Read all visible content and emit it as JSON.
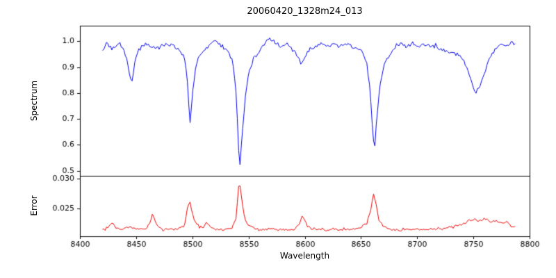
{
  "figure": {
    "background": "#ffffff",
    "axis_color": "#000000"
  },
  "chart_data": {
    "type": "line",
    "title": "20060420_1328m24_013",
    "xlabel": "Wavelength",
    "x_range": [
      8400,
      8800
    ],
    "x_ticks": [
      8400,
      8450,
      8500,
      8550,
      8600,
      8650,
      8700,
      8750,
      8800
    ],
    "x_tick_labels": [
      "8400",
      "8450",
      "8500",
      "8550",
      "8600",
      "8650",
      "8700",
      "8750",
      "8800"
    ],
    "grid": false,
    "legend": "none",
    "subplots": [
      {
        "name": "spectrum",
        "ylabel": "Spectrum",
        "ylim": [
          0.48,
          1.06
        ],
        "y_ticks": [
          0.5,
          0.6,
          0.7,
          0.8,
          0.9,
          1.0
        ],
        "y_tick_labels": [
          "0.5",
          "0.6",
          "0.7",
          "0.8",
          "0.9",
          "1.0"
        ],
        "color": "#0000ee",
        "line_width": 1,
        "noise_amplitude": 0.014,
        "noise_scale_by_depth": true,
        "seed": 42,
        "absorption_line_centers": [
          8446,
          8498,
          8542,
          8598,
          8662,
          8750
        ],
        "points": {
          "x": [
            8420,
            8424,
            8428,
            8432,
            8436,
            8440,
            8444,
            8446,
            8449,
            8453,
            8458,
            8464,
            8470,
            8476,
            8482,
            8488,
            8492,
            8495,
            8497,
            8498,
            8500,
            8503,
            8507,
            8512,
            8517,
            8522,
            8527,
            8532,
            8536,
            8539,
            8541,
            8542,
            8544,
            8547,
            8550,
            8554,
            8559,
            8564,
            8569,
            8574,
            8579,
            8584,
            8589,
            8594,
            8597,
            8599,
            8602,
            8606,
            8611,
            8616,
            8621,
            8626,
            8631,
            8636,
            8641,
            8646,
            8651,
            8655,
            8658,
            8660,
            8662,
            8664,
            8667,
            8671,
            8676,
            8681,
            8686,
            8691,
            8696,
            8701,
            8706,
            8711,
            8716,
            8721,
            8726,
            8731,
            8736,
            8741,
            8745,
            8749,
            8752,
            8756,
            8760,
            8764,
            8768,
            8772,
            8776,
            8780,
            8784,
            8788
          ],
          "y": [
            0.97,
            0.99,
            0.97,
            0.98,
            0.99,
            0.96,
            0.88,
            0.83,
            0.93,
            0.97,
            0.99,
            0.98,
            0.97,
            0.99,
            0.98,
            0.97,
            0.95,
            0.88,
            0.74,
            0.69,
            0.79,
            0.9,
            0.95,
            0.97,
            0.99,
            1.0,
            0.98,
            0.96,
            0.92,
            0.8,
            0.6,
            0.5,
            0.62,
            0.78,
            0.87,
            0.93,
            0.96,
            0.99,
            1.01,
            0.99,
            0.98,
            0.99,
            0.97,
            0.94,
            0.91,
            0.93,
            0.96,
            0.97,
            0.98,
            0.99,
            0.98,
            0.99,
            0.98,
            0.99,
            0.98,
            0.97,
            0.96,
            0.92,
            0.82,
            0.68,
            0.57,
            0.7,
            0.84,
            0.91,
            0.95,
            0.98,
            0.99,
            0.98,
            0.99,
            0.98,
            0.99,
            0.98,
            0.98,
            0.97,
            0.96,
            0.96,
            0.95,
            0.93,
            0.89,
            0.83,
            0.8,
            0.83,
            0.88,
            0.93,
            0.96,
            0.98,
            0.99,
            0.98,
            1.0,
            0.99
          ]
        }
      },
      {
        "name": "error",
        "ylabel": "Error",
        "ylim": [
          0.0203,
          0.0305
        ],
        "y_ticks": [
          0.025,
          0.03
        ],
        "y_tick_labels": [
          "0.025",
          "0.030"
        ],
        "color": "#ee0000",
        "line_width": 1,
        "noise_amplitude": 0.00038,
        "noise_scale_by_depth": false,
        "seed": 7,
        "points": {
          "x": [
            8420,
            8425,
            8429,
            8431,
            8434,
            8438,
            8442,
            8446,
            8450,
            8454,
            8458,
            8462,
            8465,
            8467,
            8470,
            8474,
            8479,
            8484,
            8489,
            8493,
            8496,
            8498,
            8501,
            8505,
            8509,
            8513,
            8516,
            8520,
            8525,
            8530,
            8535,
            8539,
            8541,
            8542,
            8544,
            8547,
            8551,
            8556,
            8561,
            8566,
            8571,
            8576,
            8581,
            8586,
            8591,
            8595,
            8598,
            8601,
            8605,
            8610,
            8615,
            8620,
            8625,
            8630,
            8635,
            8640,
            8645,
            8650,
            8655,
            8659,
            8661,
            8663,
            8666,
            8670,
            8675,
            8680,
            8685,
            8690,
            8695,
            8700,
            8705,
            8710,
            8715,
            8720,
            8725,
            8730,
            8735,
            8740,
            8745,
            8750,
            8755,
            8760,
            8765,
            8770,
            8775,
            8780,
            8784,
            8788
          ],
          "y": [
            0.0214,
            0.0217,
            0.0227,
            0.022,
            0.0216,
            0.0214,
            0.022,
            0.0217,
            0.0215,
            0.0216,
            0.0215,
            0.0224,
            0.0242,
            0.0226,
            0.0217,
            0.0215,
            0.0216,
            0.0215,
            0.0217,
            0.0221,
            0.0255,
            0.0261,
            0.0233,
            0.0221,
            0.0217,
            0.0226,
            0.0218,
            0.0215,
            0.0214,
            0.0215,
            0.0217,
            0.0234,
            0.0285,
            0.0296,
            0.0262,
            0.023,
            0.0221,
            0.0216,
            0.0214,
            0.0215,
            0.0216,
            0.0214,
            0.0215,
            0.0214,
            0.0216,
            0.0224,
            0.0237,
            0.0224,
            0.0216,
            0.0214,
            0.0215,
            0.0214,
            0.0215,
            0.0214,
            0.0215,
            0.0214,
            0.0216,
            0.0218,
            0.0224,
            0.0252,
            0.0274,
            0.0262,
            0.023,
            0.022,
            0.0216,
            0.0215,
            0.0214,
            0.0215,
            0.0214,
            0.0215,
            0.0214,
            0.0216,
            0.0215,
            0.0216,
            0.0217,
            0.0218,
            0.0219,
            0.0222,
            0.0228,
            0.0233,
            0.0229,
            0.0233,
            0.0227,
            0.023,
            0.0225,
            0.0228,
            0.0221,
            0.0219
          ]
        }
      }
    ]
  }
}
